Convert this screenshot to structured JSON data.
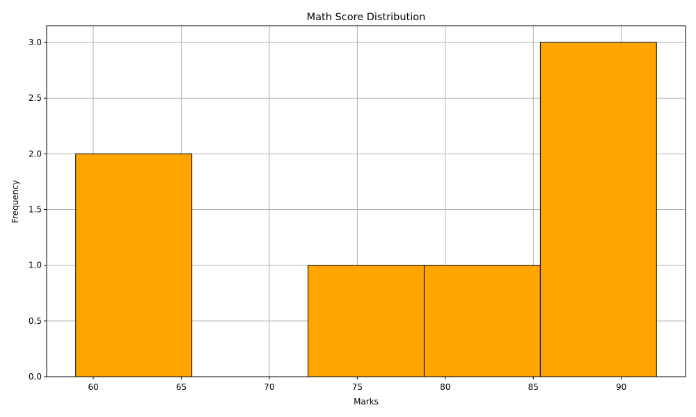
{
  "chart_data": {
    "type": "bar",
    "title": "Math Score Distribution",
    "xlabel": "Marks",
    "ylabel": "Frequency",
    "bins": [
      {
        "start": 59.0,
        "end": 65.6,
        "count": 2
      },
      {
        "start": 65.6,
        "end": 72.2,
        "count": 0
      },
      {
        "start": 72.2,
        "end": 78.8,
        "count": 1
      },
      {
        "start": 78.8,
        "end": 85.4,
        "count": 1
      },
      {
        "start": 85.4,
        "end": 92.0,
        "count": 3
      }
    ],
    "xlim": [
      57.35,
      93.65
    ],
    "ylim": [
      0,
      3.15
    ],
    "xticks": [
      60,
      65,
      70,
      75,
      80,
      85,
      90
    ],
    "yticks": [
      0.0,
      0.5,
      1.0,
      1.5,
      2.0,
      2.5,
      3.0
    ],
    "xtick_labels": [
      "60",
      "65",
      "70",
      "75",
      "80",
      "85",
      "90"
    ],
    "ytick_labels": [
      "0.0",
      "0.5",
      "1.0",
      "1.5",
      "2.0",
      "2.5",
      "3.0"
    ],
    "grid": true,
    "colors": {
      "bar": "#FFA500",
      "edge": "#000000",
      "grid": "#b0b0b0"
    }
  }
}
